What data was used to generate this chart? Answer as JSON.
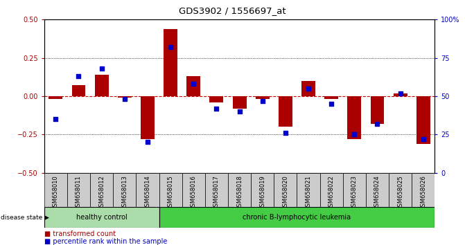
{
  "title": "GDS3902 / 1556697_at",
  "samples": [
    "GSM658010",
    "GSM658011",
    "GSM658012",
    "GSM658013",
    "GSM658014",
    "GSM658015",
    "GSM658016",
    "GSM658017",
    "GSM658018",
    "GSM658019",
    "GSM658020",
    "GSM658021",
    "GSM658022",
    "GSM658023",
    "GSM658024",
    "GSM658025",
    "GSM658026"
  ],
  "red_bars": [
    -0.02,
    0.07,
    0.14,
    -0.01,
    -0.28,
    0.44,
    0.13,
    -0.04,
    -0.08,
    -0.02,
    -0.2,
    0.1,
    -0.02,
    -0.28,
    -0.18,
    0.02,
    -0.31
  ],
  "blue_dots_pct": [
    35,
    63,
    68,
    48,
    20,
    82,
    58,
    42,
    40,
    47,
    26,
    55,
    45,
    25,
    32,
    52,
    22
  ],
  "ylim_left": [
    -0.5,
    0.5
  ],
  "ylim_right": [
    0,
    100
  ],
  "left_yticks": [
    -0.5,
    -0.25,
    0,
    0.25,
    0.5
  ],
  "right_yticks": [
    0,
    25,
    50,
    75,
    100
  ],
  "right_yticklabels": [
    "0",
    "25",
    "50",
    "75",
    "100%"
  ],
  "healthy_control_count": 5,
  "group1_label": "healthy control",
  "group2_label": "chronic B-lymphocytic leukemia",
  "disease_state_label": "disease state",
  "legend1_label": "transformed count",
  "legend2_label": "percentile rank within the sample",
  "bar_color": "#aa0000",
  "dot_color": "#0000cc",
  "group1_color": "#aaddaa",
  "group2_color": "#44cc44",
  "zero_line_color": "#cc0000",
  "dotted_line_color": "#000000",
  "tick_label_bg": "#cccccc",
  "title_fontsize": 9.5,
  "axis_fontsize": 7,
  "label_fontsize": 6
}
